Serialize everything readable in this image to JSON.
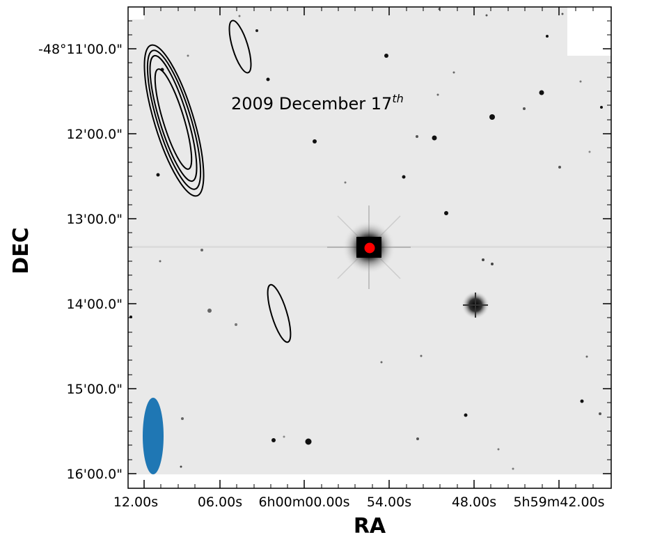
{
  "figure": {
    "annotation": "2009 December 17",
    "annotation_sup": "th",
    "xlabel": "RA",
    "ylabel": "DEC",
    "x_ticks": [
      "12.00s",
      "06.00s",
      "6h00m00.00s",
      "54.00s",
      "48.00s",
      "5h59m42.00s"
    ],
    "y_ticks": [
      "-48°11'00.0\"",
      "12'00.0\"",
      "13'00.0\"",
      "14'00.0\"",
      "15'00.0\"",
      "16'00.0\""
    ],
    "colors": {
      "background_image": "#e9e9e9",
      "contour": "#000000",
      "marker": "#ff0000",
      "beam": "#1f77b4"
    },
    "elements": {
      "contours": "radio-contours",
      "marker": "red-source-marker",
      "beam": "beam-ellipse"
    }
  }
}
